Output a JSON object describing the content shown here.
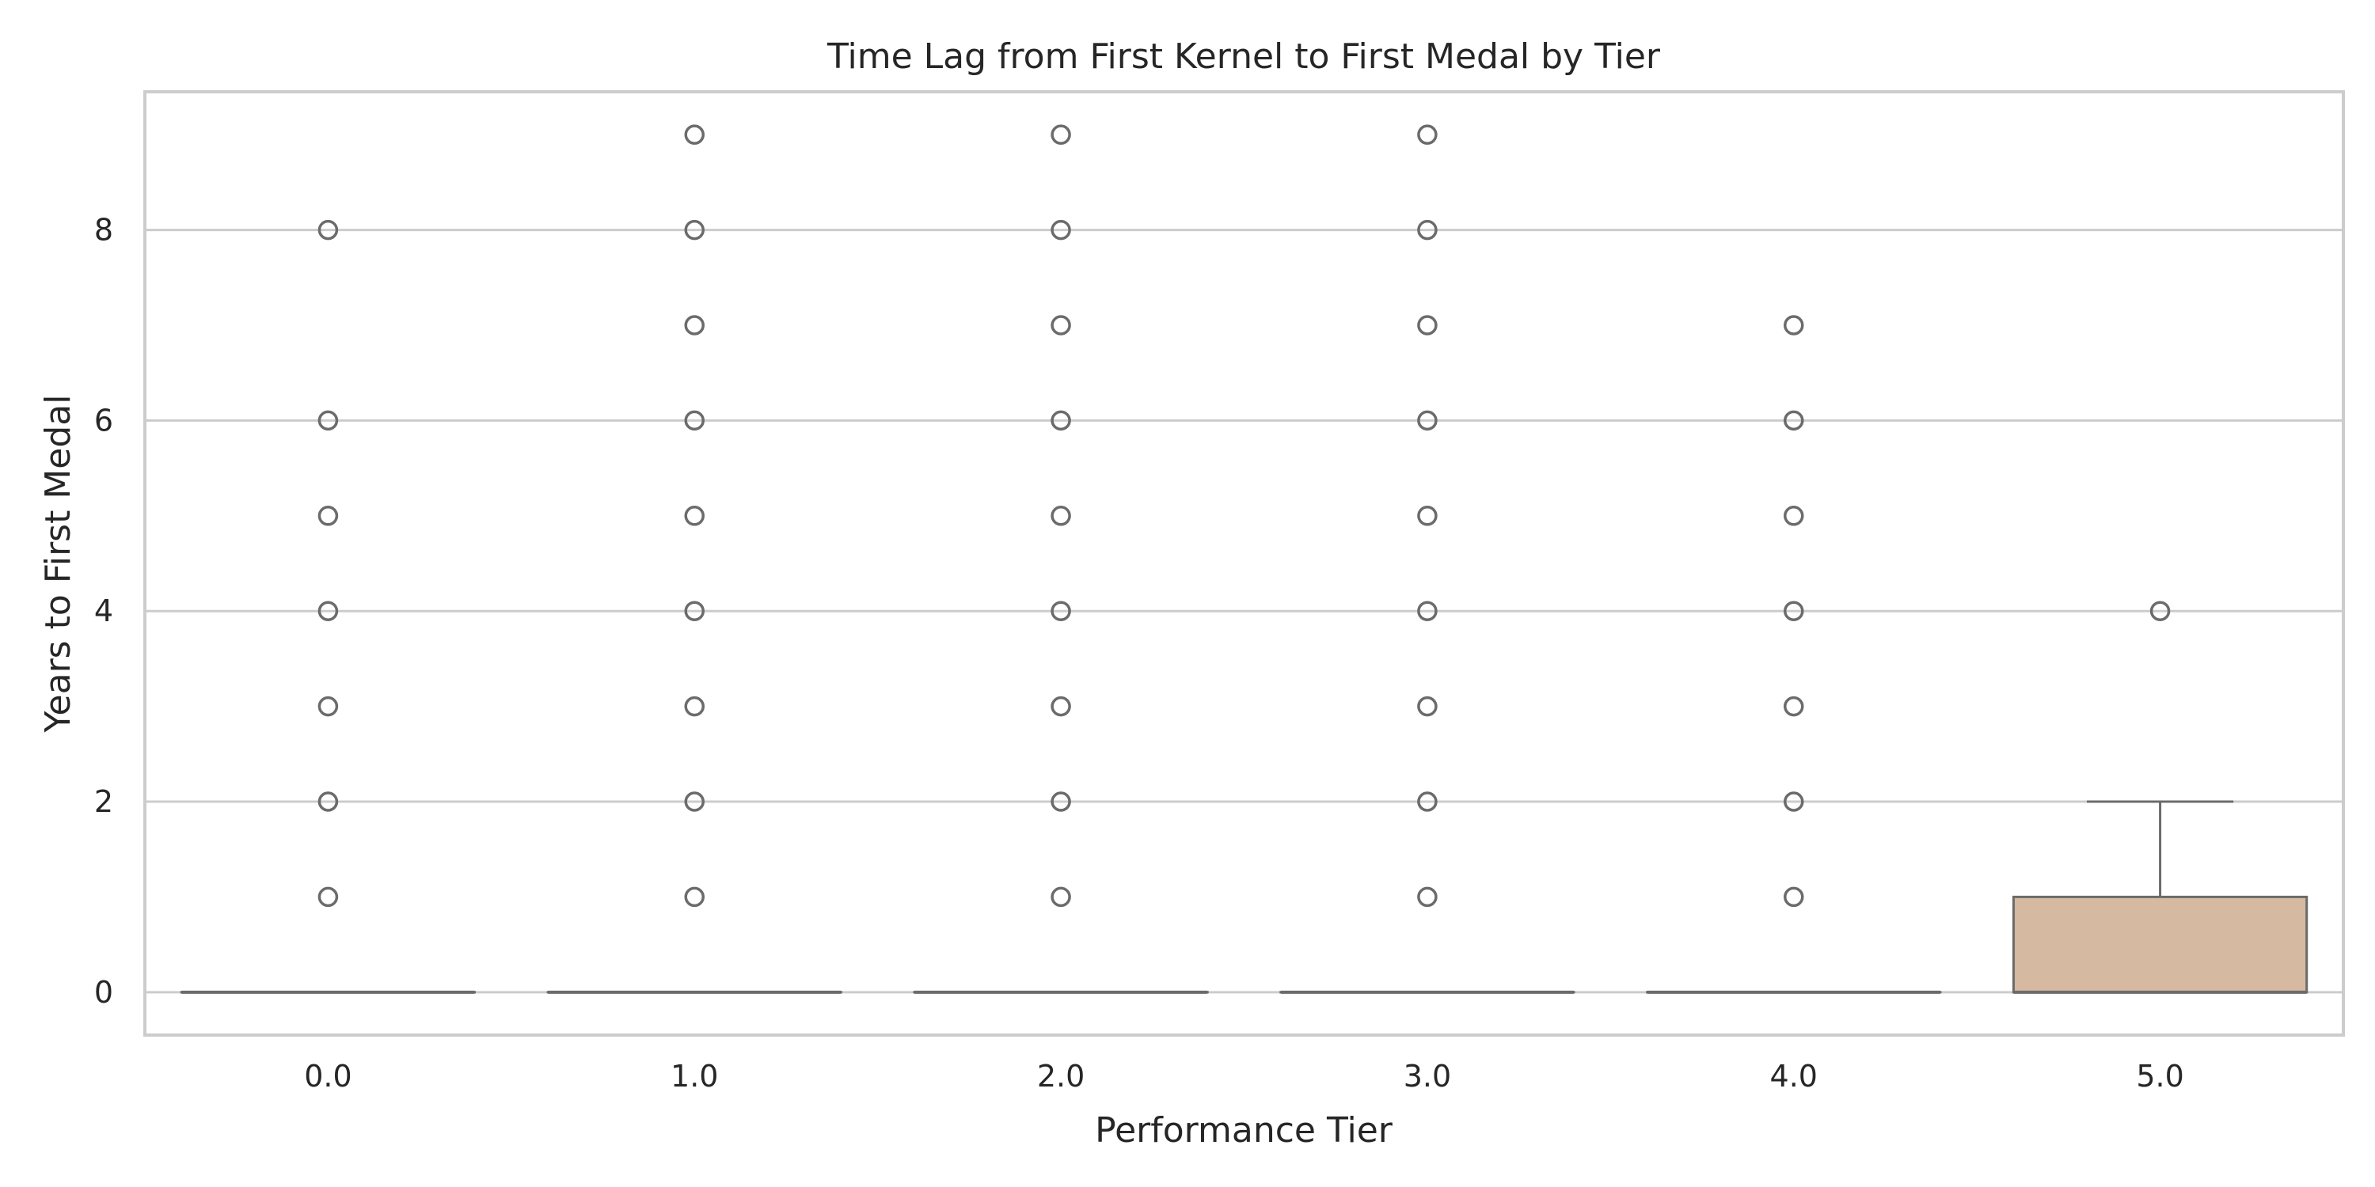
{
  "chart_data": {
    "type": "box",
    "title": "Time Lag from First Kernel to First Medal by Tier",
    "xlabel": "Performance Tier",
    "ylabel": "Years to First Medal",
    "categories": [
      "0.0",
      "1.0",
      "2.0",
      "3.0",
      "4.0",
      "5.0"
    ],
    "ylim": [
      -0.45,
      9.45
    ],
    "yticks": [
      0,
      2,
      4,
      6,
      8
    ],
    "grid": "horizontal",
    "box_color": "#d5b9a0",
    "box_edge_color": "#6b6b6b",
    "outlier_color": "#6b6b6b",
    "grid_color": "#cccccc",
    "axis_color": "#cccccc",
    "boxes": [
      {
        "category": "0.0",
        "q1": 0,
        "median": 0,
        "q3": 0,
        "whisker_low": 0,
        "whisker_high": 0,
        "outliers": [
          1,
          2,
          3,
          4,
          5,
          6,
          8
        ]
      },
      {
        "category": "1.0",
        "q1": 0,
        "median": 0,
        "q3": 0,
        "whisker_low": 0,
        "whisker_high": 0,
        "outliers": [
          1,
          2,
          3,
          4,
          5,
          6,
          7,
          8,
          9
        ]
      },
      {
        "category": "2.0",
        "q1": 0,
        "median": 0,
        "q3": 0,
        "whisker_low": 0,
        "whisker_high": 0,
        "outliers": [
          1,
          2,
          3,
          4,
          5,
          6,
          7,
          8,
          9
        ]
      },
      {
        "category": "3.0",
        "q1": 0,
        "median": 0,
        "q3": 0,
        "whisker_low": 0,
        "whisker_high": 0,
        "outliers": [
          1,
          2,
          3,
          4,
          5,
          6,
          7,
          8,
          9
        ]
      },
      {
        "category": "4.0",
        "q1": 0,
        "median": 0,
        "q3": 0,
        "whisker_low": 0,
        "whisker_high": 0,
        "outliers": [
          1,
          2,
          3,
          4,
          5,
          6,
          7
        ]
      },
      {
        "category": "5.0",
        "q1": 0,
        "median": 0,
        "q3": 1,
        "whisker_low": 0,
        "whisker_high": 2,
        "outliers": [
          4
        ]
      }
    ]
  }
}
